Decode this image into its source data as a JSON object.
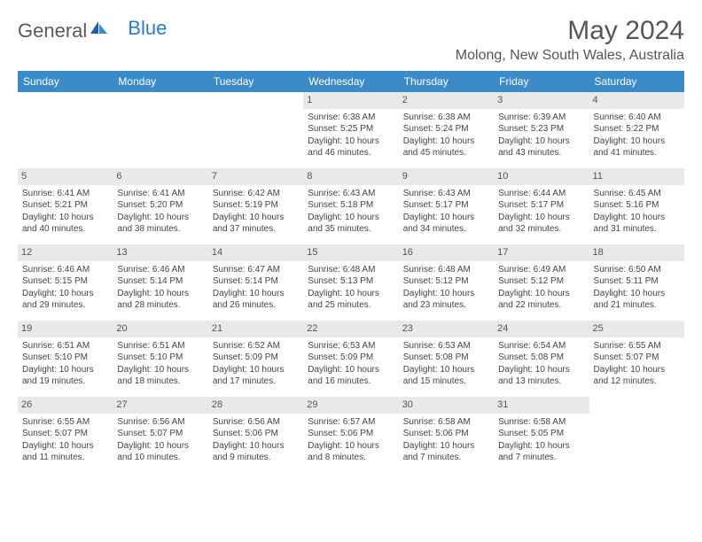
{
  "brand": {
    "textGray": "General",
    "textBlue": "Blue"
  },
  "title": "May 2024",
  "location": "Molong, New South Wales, Australia",
  "colors": {
    "headerBar": "#3b8bc9",
    "dayNumBg": "#e9e9e9",
    "text": "#444444",
    "brandGray": "#5a5a5a",
    "brandBlue": "#2b7cc4",
    "background": "#ffffff"
  },
  "layout": {
    "columns": 7,
    "startPadding": 3,
    "cellMinHeight": 86
  },
  "weekdays": [
    "Sunday",
    "Monday",
    "Tuesday",
    "Wednesday",
    "Thursday",
    "Friday",
    "Saturday"
  ],
  "days": [
    {
      "n": 1,
      "sunrise": "6:38 AM",
      "sunset": "5:25 PM",
      "daylight": "10 hours and 46 minutes."
    },
    {
      "n": 2,
      "sunrise": "6:38 AM",
      "sunset": "5:24 PM",
      "daylight": "10 hours and 45 minutes."
    },
    {
      "n": 3,
      "sunrise": "6:39 AM",
      "sunset": "5:23 PM",
      "daylight": "10 hours and 43 minutes."
    },
    {
      "n": 4,
      "sunrise": "6:40 AM",
      "sunset": "5:22 PM",
      "daylight": "10 hours and 41 minutes."
    },
    {
      "n": 5,
      "sunrise": "6:41 AM",
      "sunset": "5:21 PM",
      "daylight": "10 hours and 40 minutes."
    },
    {
      "n": 6,
      "sunrise": "6:41 AM",
      "sunset": "5:20 PM",
      "daylight": "10 hours and 38 minutes."
    },
    {
      "n": 7,
      "sunrise": "6:42 AM",
      "sunset": "5:19 PM",
      "daylight": "10 hours and 37 minutes."
    },
    {
      "n": 8,
      "sunrise": "6:43 AM",
      "sunset": "5:18 PM",
      "daylight": "10 hours and 35 minutes."
    },
    {
      "n": 9,
      "sunrise": "6:43 AM",
      "sunset": "5:17 PM",
      "daylight": "10 hours and 34 minutes."
    },
    {
      "n": 10,
      "sunrise": "6:44 AM",
      "sunset": "5:17 PM",
      "daylight": "10 hours and 32 minutes."
    },
    {
      "n": 11,
      "sunrise": "6:45 AM",
      "sunset": "5:16 PM",
      "daylight": "10 hours and 31 minutes."
    },
    {
      "n": 12,
      "sunrise": "6:46 AM",
      "sunset": "5:15 PM",
      "daylight": "10 hours and 29 minutes."
    },
    {
      "n": 13,
      "sunrise": "6:46 AM",
      "sunset": "5:14 PM",
      "daylight": "10 hours and 28 minutes."
    },
    {
      "n": 14,
      "sunrise": "6:47 AM",
      "sunset": "5:14 PM",
      "daylight": "10 hours and 26 minutes."
    },
    {
      "n": 15,
      "sunrise": "6:48 AM",
      "sunset": "5:13 PM",
      "daylight": "10 hours and 25 minutes."
    },
    {
      "n": 16,
      "sunrise": "6:48 AM",
      "sunset": "5:12 PM",
      "daylight": "10 hours and 23 minutes."
    },
    {
      "n": 17,
      "sunrise": "6:49 AM",
      "sunset": "5:12 PM",
      "daylight": "10 hours and 22 minutes."
    },
    {
      "n": 18,
      "sunrise": "6:50 AM",
      "sunset": "5:11 PM",
      "daylight": "10 hours and 21 minutes."
    },
    {
      "n": 19,
      "sunrise": "6:51 AM",
      "sunset": "5:10 PM",
      "daylight": "10 hours and 19 minutes."
    },
    {
      "n": 20,
      "sunrise": "6:51 AM",
      "sunset": "5:10 PM",
      "daylight": "10 hours and 18 minutes."
    },
    {
      "n": 21,
      "sunrise": "6:52 AM",
      "sunset": "5:09 PM",
      "daylight": "10 hours and 17 minutes."
    },
    {
      "n": 22,
      "sunrise": "6:53 AM",
      "sunset": "5:09 PM",
      "daylight": "10 hours and 16 minutes."
    },
    {
      "n": 23,
      "sunrise": "6:53 AM",
      "sunset": "5:08 PM",
      "daylight": "10 hours and 15 minutes."
    },
    {
      "n": 24,
      "sunrise": "6:54 AM",
      "sunset": "5:08 PM",
      "daylight": "10 hours and 13 minutes."
    },
    {
      "n": 25,
      "sunrise": "6:55 AM",
      "sunset": "5:07 PM",
      "daylight": "10 hours and 12 minutes."
    },
    {
      "n": 26,
      "sunrise": "6:55 AM",
      "sunset": "5:07 PM",
      "daylight": "10 hours and 11 minutes."
    },
    {
      "n": 27,
      "sunrise": "6:56 AM",
      "sunset": "5:07 PM",
      "daylight": "10 hours and 10 minutes."
    },
    {
      "n": 28,
      "sunrise": "6:56 AM",
      "sunset": "5:06 PM",
      "daylight": "10 hours and 9 minutes."
    },
    {
      "n": 29,
      "sunrise": "6:57 AM",
      "sunset": "5:06 PM",
      "daylight": "10 hours and 8 minutes."
    },
    {
      "n": 30,
      "sunrise": "6:58 AM",
      "sunset": "5:06 PM",
      "daylight": "10 hours and 7 minutes."
    },
    {
      "n": 31,
      "sunrise": "6:58 AM",
      "sunset": "5:05 PM",
      "daylight": "10 hours and 7 minutes."
    }
  ],
  "labels": {
    "sunrise": "Sunrise: ",
    "sunset": "Sunset: ",
    "daylight": "Daylight: "
  }
}
